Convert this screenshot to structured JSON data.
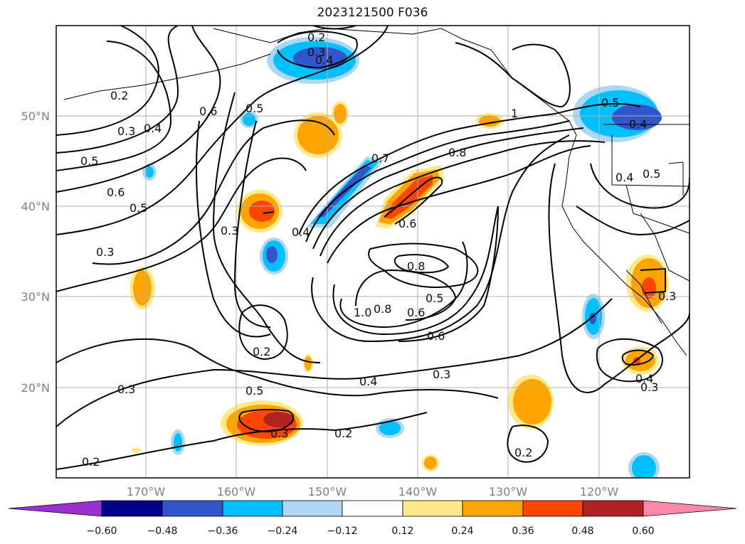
{
  "title": "2023121500 F036",
  "latitude_labels": [
    "50°N",
    "40°N",
    "30°N",
    "20°N"
  ],
  "longitude_labels": [
    "170°W",
    "160°W",
    "150°W",
    "140°W",
    "130°W",
    "120°W"
  ],
  "contour_labels": [
    "0.2",
    "0.3",
    "0.4",
    "0.6",
    "0.4",
    "0.3",
    "0.2",
    "0.5",
    "0.6",
    "0.5",
    "0.3",
    "0.4",
    "0.3",
    "0.5",
    "0.7",
    "0.8",
    "0.6",
    "0.8",
    "1.0",
    "0.8",
    "0.6",
    "0.5",
    "0.6",
    "0.2",
    "0.5",
    "0.4",
    "0.3",
    "0.2",
    "0.2",
    "0.3",
    "0.3",
    "0.2",
    "0.5",
    "0.4",
    "0.5",
    "1",
    "0.4",
    "0.3",
    "0.4",
    "0.3"
  ],
  "colorbar": {
    "ticks": [
      "−0.60",
      "−0.48",
      "−0.36",
      "−0.24",
      "−0.12",
      "0.12",
      "0.24",
      "0.36",
      "0.48",
      "0.60"
    ],
    "colors": [
      "#9b30d0",
      "#00008b",
      "#3355cc",
      "#00bfff",
      "#add8f5",
      "#ffffff",
      "#ffe98a",
      "#ffa500",
      "#ff4500",
      "#b22222",
      "#ff88aa"
    ]
  },
  "colors": {
    "neg_strong": "#3355cc",
    "neg_medium": "#00bfff",
    "neg_weak": "#add8f5",
    "pos_weak": "#ffe98a",
    "pos_medium": "#ffa500",
    "pos_strong": "#ff4500",
    "pos_very_strong": "#b22222",
    "contour": "#000000",
    "grid": "#b0b0b0"
  }
}
